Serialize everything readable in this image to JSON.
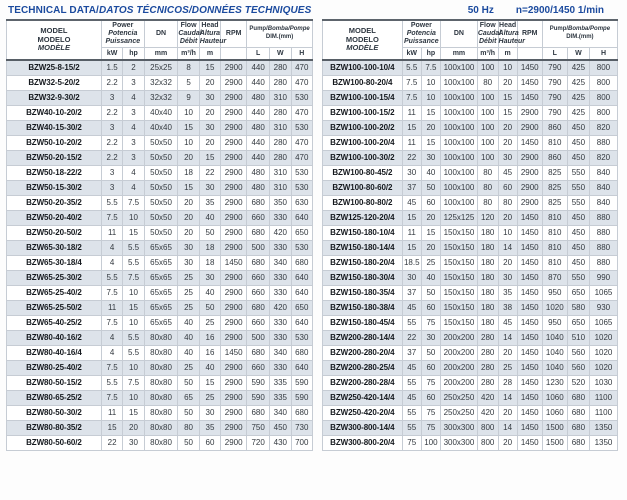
{
  "topbar": {
    "title_en": "TECHNICAL DATA/",
    "title_intl": "DATOS TÉCNICOS/DONNÉES TECHNIQUES",
    "frequency": "50 Hz",
    "speed": "n=2900/1450 1/min"
  },
  "colors": {
    "accent_blue": "#1b4a9e",
    "row_shade": "#dde3ea",
    "header_text": "#2e3741",
    "rule_dark": "#575e66",
    "rule_light": "#c6ccd4"
  },
  "header": {
    "model": [
      "MODEL",
      "MODELO",
      "MODÈLE"
    ],
    "power": [
      "Power",
      "Potencia",
      "Puissance"
    ],
    "dn": "DN",
    "flow": [
      "Flow",
      "Caudal",
      "Débit"
    ],
    "head": [
      "Head",
      "Altura",
      "Hauteur"
    ],
    "rpm": "RPM",
    "dim_line1_en": "Pump/",
    "dim_line1_intl": "Bomba/Pompe",
    "dim_line2": "DIM.(mm)",
    "units": {
      "kw": "kW",
      "hp": "hp",
      "mm": "mm",
      "flow": "m³/h",
      "head": "m",
      "rpm": "",
      "l": "L",
      "w": "W",
      "h": "H"
    }
  },
  "tables": {
    "left": {
      "rows": [
        [
          "BZW25-8-15/2",
          "1.5",
          "2",
          "25x25",
          "8",
          "15",
          "2900",
          "440",
          "280",
          "470"
        ],
        [
          "BZW32-5-20/2",
          "2.2",
          "3",
          "32x32",
          "5",
          "20",
          "2900",
          "440",
          "280",
          "470"
        ],
        [
          "BZW32-9-30/2",
          "3",
          "4",
          "32x32",
          "9",
          "30",
          "2900",
          "480",
          "310",
          "530"
        ],
        [
          "BZW40-10-20/2",
          "2.2",
          "3",
          "40x40",
          "10",
          "20",
          "2900",
          "440",
          "280",
          "470"
        ],
        [
          "BZW40-15-30/2",
          "3",
          "4",
          "40x40",
          "15",
          "30",
          "2900",
          "480",
          "310",
          "530"
        ],
        [
          "BZW50-10-20/2",
          "2.2",
          "3",
          "50x50",
          "10",
          "20",
          "2900",
          "440",
          "280",
          "470"
        ],
        [
          "BZW50-20-15/2",
          "2.2",
          "3",
          "50x50",
          "20",
          "15",
          "2900",
          "440",
          "280",
          "470"
        ],
        [
          "BZW50-18-22/2",
          "3",
          "4",
          "50x50",
          "18",
          "22",
          "2900",
          "480",
          "310",
          "530"
        ],
        [
          "BZW50-15-30/2",
          "3",
          "4",
          "50x50",
          "15",
          "30",
          "2900",
          "480",
          "310",
          "530"
        ],
        [
          "BZW50-20-35/2",
          "5.5",
          "7.5",
          "50x50",
          "20",
          "35",
          "2900",
          "680",
          "350",
          "630"
        ],
        [
          "BZW50-20-40/2",
          "7.5",
          "10",
          "50x50",
          "20",
          "40",
          "2900",
          "660",
          "330",
          "640"
        ],
        [
          "BZW50-20-50/2",
          "11",
          "15",
          "50x50",
          "20",
          "50",
          "2900",
          "680",
          "420",
          "650"
        ],
        [
          "BZW65-30-18/2",
          "4",
          "5.5",
          "65x65",
          "30",
          "18",
          "2900",
          "500",
          "330",
          "530"
        ],
        [
          "BZW65-30-18/4",
          "4",
          "5.5",
          "65x65",
          "30",
          "18",
          "1450",
          "680",
          "340",
          "680"
        ],
        [
          "BZW65-25-30/2",
          "5.5",
          "7.5",
          "65x65",
          "25",
          "30",
          "2900",
          "660",
          "330",
          "640"
        ],
        [
          "BZW65-25-40/2",
          "7.5",
          "10",
          "65x65",
          "25",
          "40",
          "2900",
          "660",
          "330",
          "640"
        ],
        [
          "BZW65-25-50/2",
          "11",
          "15",
          "65x65",
          "25",
          "50",
          "2900",
          "680",
          "420",
          "650"
        ],
        [
          "BZW65-40-25/2",
          "7.5",
          "10",
          "65x65",
          "40",
          "25",
          "2900",
          "660",
          "330",
          "640"
        ],
        [
          "BZW80-40-16/2",
          "4",
          "5.5",
          "80x80",
          "40",
          "16",
          "2900",
          "500",
          "330",
          "530"
        ],
        [
          "BZW80-40-16/4",
          "4",
          "5.5",
          "80x80",
          "40",
          "16",
          "1450",
          "680",
          "340",
          "680"
        ],
        [
          "BZW80-25-40/2",
          "7.5",
          "10",
          "80x80",
          "25",
          "40",
          "2900",
          "660",
          "330",
          "640"
        ],
        [
          "BZW80-50-15/2",
          "5.5",
          "7.5",
          "80x80",
          "50",
          "15",
          "2900",
          "590",
          "335",
          "590"
        ],
        [
          "BZW80-65-25/2",
          "7.5",
          "10",
          "80x80",
          "65",
          "25",
          "2900",
          "590",
          "335",
          "590"
        ],
        [
          "BZW80-50-30/2",
          "11",
          "15",
          "80x80",
          "50",
          "30",
          "2900",
          "680",
          "340",
          "680"
        ],
        [
          "BZW80-80-35/2",
          "15",
          "20",
          "80x80",
          "80",
          "35",
          "2900",
          "750",
          "450",
          "730"
        ],
        [
          "BZW80-50-60/2",
          "22",
          "30",
          "80x80",
          "50",
          "60",
          "2900",
          "720",
          "430",
          "700"
        ]
      ]
    },
    "right": {
      "rows": [
        [
          "BZW100-100-10/4",
          "5.5",
          "7.5",
          "100x100",
          "100",
          "10",
          "1450",
          "790",
          "425",
          "800"
        ],
        [
          "BZW100-80-20/4",
          "7.5",
          "10",
          "100x100",
          "80",
          "20",
          "1450",
          "790",
          "425",
          "800"
        ],
        [
          "BZW100-100-15/4",
          "7.5",
          "10",
          "100x100",
          "100",
          "15",
          "1450",
          "790",
          "425",
          "800"
        ],
        [
          "BZW100-100-15/2",
          "11",
          "15",
          "100x100",
          "100",
          "15",
          "2900",
          "790",
          "425",
          "800"
        ],
        [
          "BZW100-100-20/2",
          "15",
          "20",
          "100x100",
          "100",
          "20",
          "2900",
          "860",
          "450",
          "820"
        ],
        [
          "BZW100-100-20/4",
          "11",
          "15",
          "100x100",
          "100",
          "20",
          "1450",
          "810",
          "450",
          "880"
        ],
        [
          "BZW100-100-30/2",
          "22",
          "30",
          "100x100",
          "100",
          "30",
          "2900",
          "860",
          "450",
          "820"
        ],
        [
          "BZW100-80-45/2",
          "30",
          "40",
          "100x100",
          "80",
          "45",
          "2900",
          "825",
          "550",
          "840"
        ],
        [
          "BZW100-80-60/2",
          "37",
          "50",
          "100x100",
          "80",
          "60",
          "2900",
          "825",
          "550",
          "840"
        ],
        [
          "BZW100-80-80/2",
          "45",
          "60",
          "100x100",
          "80",
          "80",
          "2900",
          "825",
          "550",
          "840"
        ],
        [
          "BZW125-120-20/4",
          "15",
          "20",
          "125x125",
          "120",
          "20",
          "1450",
          "810",
          "450",
          "880"
        ],
        [
          "BZW150-180-10/4",
          "11",
          "15",
          "150x150",
          "180",
          "10",
          "1450",
          "810",
          "450",
          "880"
        ],
        [
          "BZW150-180-14/4",
          "15",
          "20",
          "150x150",
          "180",
          "14",
          "1450",
          "810",
          "450",
          "880"
        ],
        [
          "BZW150-180-20/4",
          "18.5",
          "25",
          "150x150",
          "180",
          "20",
          "1450",
          "810",
          "450",
          "880"
        ],
        [
          "BZW150-180-30/4",
          "30",
          "40",
          "150x150",
          "180",
          "30",
          "1450",
          "870",
          "550",
          "990"
        ],
        [
          "BZW150-180-35/4",
          "37",
          "50",
          "150x150",
          "180",
          "35",
          "1450",
          "950",
          "650",
          "1065"
        ],
        [
          "BZW150-180-38/4",
          "45",
          "60",
          "150x150",
          "180",
          "38",
          "1450",
          "1020",
          "580",
          "930"
        ],
        [
          "BZW150-180-45/4",
          "55",
          "75",
          "150x150",
          "180",
          "45",
          "1450",
          "950",
          "650",
          "1065"
        ],
        [
          "BZW200-280-14/4",
          "22",
          "30",
          "200x200",
          "280",
          "14",
          "1450",
          "1040",
          "510",
          "1020"
        ],
        [
          "BZW200-280-20/4",
          "37",
          "50",
          "200x200",
          "280",
          "20",
          "1450",
          "1040",
          "560",
          "1020"
        ],
        [
          "BZW200-280-25/4",
          "45",
          "60",
          "200x200",
          "280",
          "25",
          "1450",
          "1040",
          "560",
          "1020"
        ],
        [
          "BZW200-280-28/4",
          "55",
          "75",
          "200x200",
          "280",
          "28",
          "1450",
          "1230",
          "520",
          "1030"
        ],
        [
          "BZW250-420-14/4",
          "45",
          "60",
          "250x250",
          "420",
          "14",
          "1450",
          "1060",
          "680",
          "1100"
        ],
        [
          "BZW250-420-20/4",
          "55",
          "75",
          "250x250",
          "420",
          "20",
          "1450",
          "1060",
          "680",
          "1100"
        ],
        [
          "BZW300-800-14/4",
          "55",
          "75",
          "300x300",
          "800",
          "14",
          "1450",
          "1500",
          "680",
          "1350"
        ],
        [
          "BZW300-800-20/4",
          "75",
          "100",
          "300x300",
          "800",
          "20",
          "1450",
          "1500",
          "680",
          "1350"
        ]
      ]
    }
  }
}
